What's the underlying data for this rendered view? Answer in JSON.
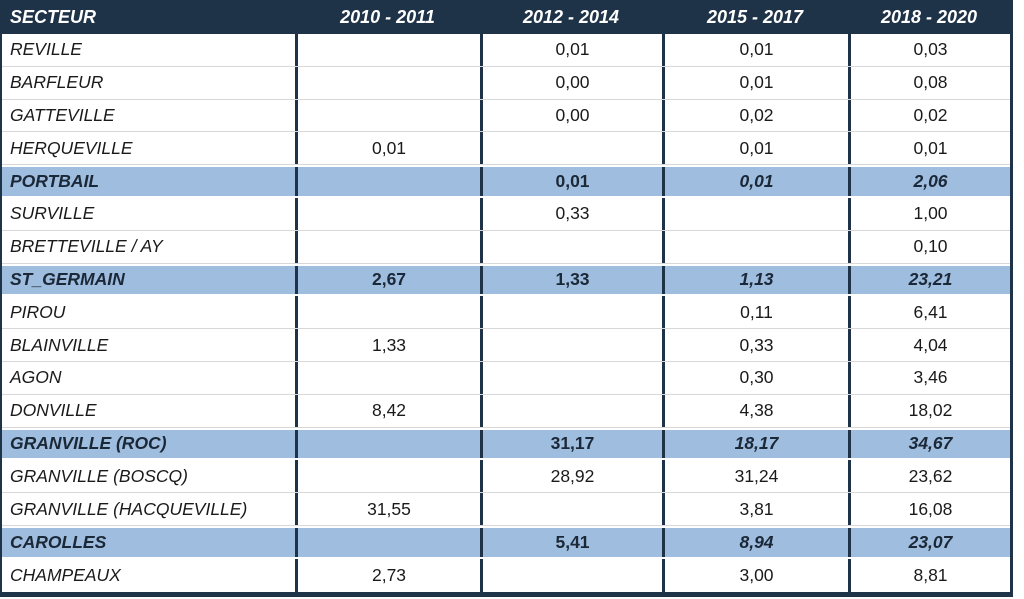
{
  "table": {
    "columns": [
      "SECTEUR",
      "2010 - 2011",
      "2012 - 2014",
      "2015 - 2017",
      "2018 - 2020"
    ],
    "rows": [
      {
        "name": "REVILLE",
        "values": [
          "",
          "0,01",
          "0,01",
          "0,03"
        ],
        "highlight": false
      },
      {
        "name": "BARFLEUR",
        "values": [
          "",
          "0,00",
          "0,01",
          "0,08"
        ],
        "highlight": false
      },
      {
        "name": "GATTEVILLE",
        "values": [
          "",
          "0,00",
          "0,02",
          "0,02"
        ],
        "highlight": false
      },
      {
        "name": "HERQUEVILLE",
        "values": [
          "0,01",
          "",
          "0,01",
          "0,01"
        ],
        "highlight": false
      },
      {
        "name": "PORTBAIL",
        "values": [
          "",
          "0,01",
          "0,01",
          "2,06"
        ],
        "highlight": true
      },
      {
        "name": "SURVILLE",
        "values": [
          "",
          "0,33",
          "",
          "1,00"
        ],
        "highlight": false
      },
      {
        "name": "BRETTEVILLE / AY",
        "values": [
          "",
          "",
          "",
          "0,10"
        ],
        "highlight": false
      },
      {
        "name": "ST_GERMAIN",
        "values": [
          "2,67",
          "1,33",
          "1,13",
          "23,21"
        ],
        "highlight": true
      },
      {
        "name": "PIROU",
        "values": [
          "",
          "",
          "0,11",
          "6,41"
        ],
        "highlight": false
      },
      {
        "name": "BLAINVILLE",
        "values": [
          "1,33",
          "",
          "0,33",
          "4,04"
        ],
        "highlight": false
      },
      {
        "name": "AGON",
        "values": [
          "",
          "",
          "0,30",
          "3,46"
        ],
        "highlight": false
      },
      {
        "name": "DONVILLE",
        "values": [
          "8,42",
          "",
          "4,38",
          "18,02"
        ],
        "highlight": false
      },
      {
        "name": "GRANVILLE (ROC)",
        "values": [
          "",
          "31,17",
          "18,17",
          "34,67"
        ],
        "highlight": true
      },
      {
        "name": "GRANVILLE (BOSCQ)",
        "values": [
          "",
          "28,92",
          "31,24",
          "23,62"
        ],
        "highlight": false
      },
      {
        "name": "GRANVILLE (HACQUEVILLE)",
        "values": [
          "31,55",
          "",
          "3,81",
          "16,08"
        ],
        "highlight": false
      },
      {
        "name": "CAROLLES",
        "values": [
          "",
          "5,41",
          "8,94",
          "23,07"
        ],
        "highlight": true
      },
      {
        "name": "CHAMPEAUX",
        "values": [
          "2,73",
          "",
          "3,00",
          "8,81"
        ],
        "highlight": false
      }
    ]
  },
  "colors": {
    "header_bg": "#1e3348",
    "highlight_bg": "#9fbdde",
    "row_separator": "#d8d8d8",
    "text": "#1a1a1a",
    "header_text": "#ffffff"
  },
  "chart_data": {
    "type": "table",
    "title": "",
    "columns": [
      "SECTEUR",
      "2010 - 2011",
      "2012 - 2014",
      "2015 - 2017",
      "2018 - 2020"
    ],
    "decimal_separator": ",",
    "highlighted_summary_rows": [
      "PORTBAIL",
      "ST_GERMAIN",
      "GRANVILLE (ROC)",
      "CAROLLES"
    ],
    "rows": [
      {
        "secteur": "REVILLE",
        "values": [
          null,
          0.01,
          0.01,
          0.03
        ]
      },
      {
        "secteur": "BARFLEUR",
        "values": [
          null,
          0.0,
          0.01,
          0.08
        ]
      },
      {
        "secteur": "GATTEVILLE",
        "values": [
          null,
          0.0,
          0.02,
          0.02
        ]
      },
      {
        "secteur": "HERQUEVILLE",
        "values": [
          0.01,
          null,
          0.01,
          0.01
        ]
      },
      {
        "secteur": "PORTBAIL",
        "values": [
          null,
          0.01,
          0.01,
          2.06
        ]
      },
      {
        "secteur": "SURVILLE",
        "values": [
          null,
          0.33,
          null,
          1.0
        ]
      },
      {
        "secteur": "BRETTEVILLE / AY",
        "values": [
          null,
          null,
          null,
          0.1
        ]
      },
      {
        "secteur": "ST_GERMAIN",
        "values": [
          2.67,
          1.33,
          1.13,
          23.21
        ]
      },
      {
        "secteur": "PIROU",
        "values": [
          null,
          null,
          0.11,
          6.41
        ]
      },
      {
        "secteur": "BLAINVILLE",
        "values": [
          1.33,
          null,
          0.33,
          4.04
        ]
      },
      {
        "secteur": "AGON",
        "values": [
          null,
          null,
          0.3,
          3.46
        ]
      },
      {
        "secteur": "DONVILLE",
        "values": [
          8.42,
          null,
          4.38,
          18.02
        ]
      },
      {
        "secteur": "GRANVILLE (ROC)",
        "values": [
          null,
          31.17,
          18.17,
          34.67
        ]
      },
      {
        "secteur": "GRANVILLE (BOSCQ)",
        "values": [
          null,
          28.92,
          31.24,
          23.62
        ]
      },
      {
        "secteur": "GRANVILLE (HACQUEVILLE)",
        "values": [
          31.55,
          null,
          3.81,
          16.08
        ]
      },
      {
        "secteur": "CAROLLES",
        "values": [
          null,
          5.41,
          8.94,
          23.07
        ]
      },
      {
        "secteur": "CHAMPEAUX",
        "values": [
          2.73,
          null,
          3.0,
          8.81
        ]
      }
    ]
  }
}
